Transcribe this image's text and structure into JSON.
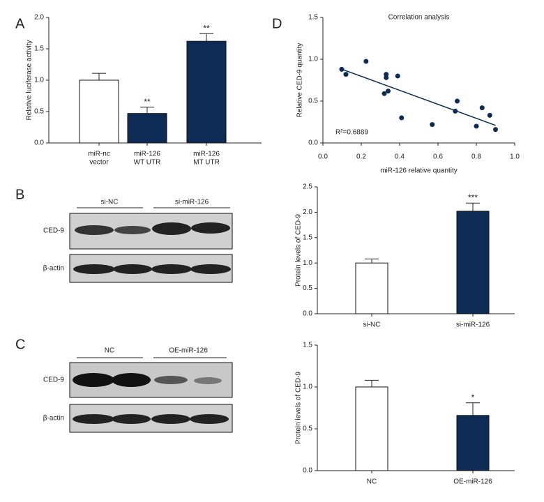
{
  "panel_letters": [
    "A",
    "B",
    "C",
    "D"
  ],
  "blots": [
    {
      "groups": [
        "si-NC",
        "si-miR-126"
      ],
      "rows": [
        "CED-9",
        "β-actin"
      ]
    },
    {
      "groups": [
        "NC",
        "OE-miR-126"
      ],
      "rows": [
        "CED-9",
        "β-actin"
      ]
    }
  ],
  "chart_data": [
    {
      "type": "bar",
      "ylabel": "Relative luciferase activity",
      "categories": [
        [
          "miR-nc",
          "vector"
        ],
        [
          "miR-126",
          "WT UTR"
        ],
        [
          "miR-126",
          "MT UTR"
        ]
      ],
      "values": [
        1.0,
        0.47,
        1.62
      ],
      "errors": [
        0.11,
        0.1,
        0.12
      ],
      "significance": [
        null,
        "**",
        "**"
      ],
      "colors": [
        "#ffffff",
        "#0d2b55",
        "#0d2b55"
      ],
      "ylim": [
        0,
        2
      ],
      "yticks": [
        {
          "value": 0,
          "label": "0.0"
        },
        0.5,
        {
          "value": 1,
          "label": "1.0"
        },
        1.5,
        {
          "value": 2,
          "label": "2.0"
        }
      ]
    },
    {
      "type": "scatter",
      "title": "Correlation analysis",
      "xlabel": "miR-126 relative quantity",
      "ylabel": "Relative CED-9 quantity",
      "annotation": "R²=0.6889",
      "x": [
        0.098,
        0.12,
        0.225,
        0.33,
        0.33,
        0.32,
        0.34,
        0.39,
        0.41,
        0.57,
        0.69,
        0.7,
        0.8,
        0.83,
        0.87,
        0.9
      ],
      "y": [
        0.88,
        0.82,
        0.975,
        0.82,
        0.78,
        0.59,
        0.62,
        0.8,
        0.3,
        0.22,
        0.38,
        0.5,
        0.2,
        0.42,
        0.33,
        0.16
      ],
      "fit": {
        "x": [
          0.1,
          0.9
        ],
        "y": [
          0.88,
          0.21
        ]
      },
      "color": "#0d2b55",
      "xlim": [
        0,
        1
      ],
      "ylim": [
        0,
        1.5
      ],
      "xticks": [
        {
          "value": 0,
          "label": "0.0"
        },
        0.2,
        0.4,
        0.6,
        0.8,
        {
          "value": 1,
          "label": "1.0"
        }
      ],
      "yticks": [
        {
          "value": 0,
          "label": "0.0"
        },
        0.5,
        {
          "value": 1,
          "label": "1.0"
        },
        1.5
      ]
    },
    {
      "type": "bar",
      "ylabel": "Protein levels of CED-9",
      "categories": [
        "si-NC",
        "si-miR-126"
      ],
      "values": [
        1.0,
        2.02
      ],
      "errors": [
        0.08,
        0.16
      ],
      "significance": [
        null,
        "***"
      ],
      "colors": [
        "#ffffff",
        "#0d2b55"
      ],
      "ylim": [
        0,
        2.5
      ],
      "yticks": [
        {
          "value": 0,
          "label": "0.0"
        },
        0.5,
        {
          "value": 1,
          "label": "1.0"
        },
        1.5,
        {
          "value": 2,
          "label": "2.0"
        },
        2.5
      ]
    },
    {
      "type": "bar",
      "ylabel": "Protein levels of CED-9",
      "categories": [
        "NC",
        "OE-miR-126"
      ],
      "values": [
        1.0,
        0.66
      ],
      "errors": [
        0.08,
        0.15
      ],
      "significance": [
        null,
        "*"
      ],
      "colors": [
        "#ffffff",
        "#0d2b55"
      ],
      "ylim": [
        0,
        1.5
      ],
      "yticks": [
        {
          "value": 0,
          "label": "0.0"
        },
        0.5,
        {
          "value": 1,
          "label": "1.0"
        },
        1.5
      ]
    }
  ]
}
